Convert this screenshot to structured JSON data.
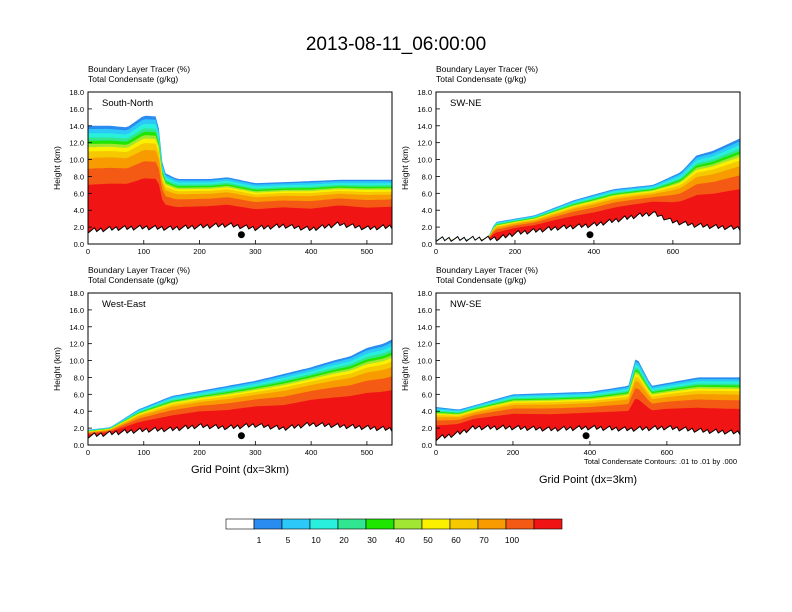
{
  "title": "2013-08-11_06:00:00",
  "field_labels": [
    "Boundary Layer Tracer   (%)",
    "Total Condensate   (g/kg)"
  ],
  "y_axis_label": "Height (km)",
  "x_axis_label": "Grid Point (dx=3km)",
  "footnote": "Total Condensate Contours: .01 to .01 by .000",
  "colorbar": {
    "colors": [
      "#ffffff",
      "#2a8cf0",
      "#2cc8f8",
      "#29f0dc",
      "#31e691",
      "#1ee600",
      "#a0e632",
      "#faf000",
      "#f5c800",
      "#f89b00",
      "#f55a14",
      "#f01414"
    ],
    "labels": [
      "1",
      "5",
      "10",
      "20",
      "30",
      "40",
      "50",
      "60",
      "70",
      "100"
    ]
  },
  "chart_data": [
    {
      "type": "heatmap",
      "panel_label": "South-North",
      "xlim": [
        0,
        545
      ],
      "ylim": [
        0,
        18
      ],
      "xticks": [
        0,
        100,
        200,
        300,
        400,
        500
      ],
      "yticks": [
        "0.0",
        "2.0",
        "4.0",
        "6.0",
        "8.0",
        "10.0",
        "12.0",
        "14.0",
        "16.0",
        "18.0"
      ],
      "marker": [
        275,
        1.1
      ],
      "boundary_layer_top_km": [
        [
          0,
          14.0
        ],
        [
          40,
          14.0
        ],
        [
          70,
          13.8
        ],
        [
          100,
          15.2
        ],
        [
          125,
          15.1
        ],
        [
          135,
          8.5
        ],
        [
          160,
          7.7
        ],
        [
          220,
          7.7
        ],
        [
          250,
          7.9
        ],
        [
          300,
          7.2
        ],
        [
          380,
          7.4
        ],
        [
          450,
          7.6
        ],
        [
          545,
          7.6
        ]
      ],
      "terrain_km": [
        [
          0,
          1.3
        ],
        [
          50,
          1.6
        ],
        [
          100,
          1.7
        ],
        [
          150,
          1.6
        ],
        [
          200,
          1.8
        ],
        [
          250,
          2.0
        ],
        [
          300,
          1.6
        ],
        [
          350,
          1.9
        ],
        [
          400,
          1.5
        ],
        [
          450,
          2.1
        ],
        [
          500,
          1.6
        ],
        [
          545,
          1.8
        ]
      ]
    },
    {
      "type": "heatmap",
      "panel_label": "SW-NE",
      "xlim": [
        0,
        770
      ],
      "ylim": [
        0,
        18
      ],
      "xticks": [
        0,
        200,
        400,
        600
      ],
      "yticks": [
        "0.0",
        "2.0",
        "4.0",
        "6.0",
        "8.0",
        "10.0",
        "12.0",
        "14.0",
        "16.0",
        "18.0"
      ],
      "marker": [
        390,
        1.1
      ],
      "boundary_layer_top_km": [
        [
          0,
          0.5
        ],
        [
          130,
          0.6
        ],
        [
          150,
          2.6
        ],
        [
          250,
          3.4
        ],
        [
          350,
          5.2
        ],
        [
          450,
          6.5
        ],
        [
          550,
          7.0
        ],
        [
          620,
          8.5
        ],
        [
          660,
          10.5
        ],
        [
          700,
          11.0
        ],
        [
          770,
          12.5
        ]
      ],
      "terrain_km": [
        [
          0,
          0.3
        ],
        [
          160,
          0.4
        ],
        [
          200,
          1.0
        ],
        [
          300,
          1.6
        ],
        [
          400,
          2.0
        ],
        [
          500,
          3.0
        ],
        [
          550,
          3.4
        ],
        [
          600,
          2.4
        ],
        [
          650,
          2.0
        ],
        [
          700,
          1.8
        ],
        [
          770,
          1.6
        ]
      ]
    },
    {
      "type": "heatmap",
      "panel_label": "West-East",
      "xlim": [
        0,
        545
      ],
      "ylim": [
        0,
        18
      ],
      "xticks": [
        0,
        100,
        200,
        300,
        400,
        500
      ],
      "yticks": [
        "0.0",
        "2.0",
        "4.0",
        "6.0",
        "8.0",
        "10.0",
        "12.0",
        "14.0",
        "16.0",
        "18.0"
      ],
      "marker": [
        275,
        1.1
      ],
      "boundary_layer_top_km": [
        [
          0,
          1.8
        ],
        [
          40,
          2.1
        ],
        [
          90,
          4.2
        ],
        [
          150,
          5.8
        ],
        [
          200,
          6.4
        ],
        [
          300,
          7.6
        ],
        [
          400,
          9.2
        ],
        [
          440,
          10.0
        ],
        [
          470,
          10.5
        ],
        [
          500,
          11.5
        ],
        [
          530,
          12.0
        ],
        [
          545,
          12.5
        ]
      ],
      "terrain_km": [
        [
          0,
          0.8
        ],
        [
          50,
          1.2
        ],
        [
          100,
          1.5
        ],
        [
          150,
          1.6
        ],
        [
          200,
          2.0
        ],
        [
          250,
          1.8
        ],
        [
          300,
          2.1
        ],
        [
          350,
          1.7
        ],
        [
          400,
          2.2
        ],
        [
          450,
          2.0
        ],
        [
          500,
          1.8
        ],
        [
          545,
          1.6
        ]
      ]
    },
    {
      "type": "heatmap",
      "panel_label": "NW-SE",
      "xlim": [
        0,
        790
      ],
      "ylim": [
        0,
        18
      ],
      "xticks": [
        0,
        200,
        400,
        600
      ],
      "yticks": [
        "0.0",
        "2.0",
        "4.0",
        "6.0",
        "8.0",
        "10.0",
        "12.0",
        "14.0",
        "16.0",
        "18.0"
      ],
      "marker": [
        390,
        1.1
      ],
      "boundary_layer_top_km": [
        [
          0,
          4.5
        ],
        [
          60,
          4.2
        ],
        [
          200,
          6.0
        ],
        [
          400,
          6.3
        ],
        [
          500,
          7.0
        ],
        [
          520,
          10.5
        ],
        [
          560,
          7.0
        ],
        [
          620,
          7.5
        ],
        [
          680,
          8.0
        ],
        [
          790,
          8.0
        ]
      ],
      "terrain_km": [
        [
          0,
          0.5
        ],
        [
          50,
          1.0
        ],
        [
          100,
          1.8
        ],
        [
          200,
          1.8
        ],
        [
          300,
          1.6
        ],
        [
          400,
          1.8
        ],
        [
          500,
          1.6
        ],
        [
          550,
          1.7
        ],
        [
          600,
          1.8
        ],
        [
          700,
          1.4
        ],
        [
          790,
          1.2
        ]
      ]
    }
  ]
}
